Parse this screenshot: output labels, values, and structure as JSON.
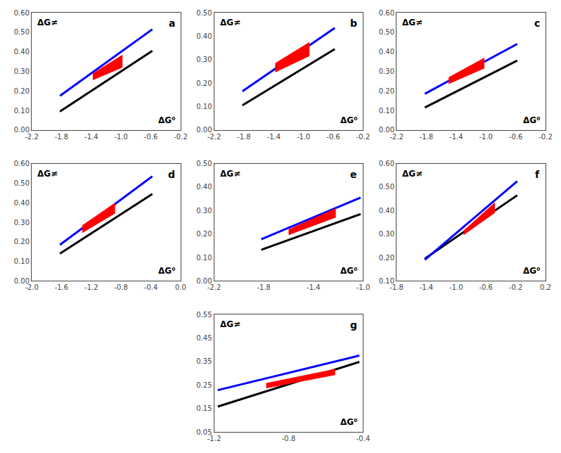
{
  "chart_data": [
    {
      "type": "line",
      "label": "a",
      "annotations": [
        "ΔG≠",
        "ΔG⁰"
      ],
      "grid": false,
      "xlim": [
        -2.2,
        -0.2
      ],
      "xticks": [
        -2.2,
        -1.8,
        -1.4,
        {
          "value": -1.0,
          "label": "-1.0"
        },
        -0.6,
        -0.2
      ],
      "ylim": [
        0.0,
        0.6
      ],
      "yticks": [
        {
          "value": 0.0,
          "label": "0.00"
        },
        {
          "value": 0.1,
          "label": "0.10"
        },
        {
          "value": 0.2,
          "label": "0.20"
        },
        {
          "value": 0.3,
          "label": "0.30"
        },
        {
          "value": 0.4,
          "label": "0.40"
        },
        {
          "value": 0.5,
          "label": "0.50"
        },
        {
          "value": 0.6,
          "label": "0.60"
        }
      ],
      "series": [
        {
          "type": "line",
          "color": "#000000",
          "x": [
            -1.82,
            -0.58
          ],
          "values": [
            0.095,
            0.405
          ]
        },
        {
          "type": "line",
          "color": "#0000FF",
          "x": [
            -1.82,
            -0.58
          ],
          "values": [
            0.175,
            0.515
          ]
        },
        {
          "type": "band",
          "color": "#FF0000",
          "x": [
            -1.38,
            -0.98
          ],
          "values": [
            0.29,
            0.385
          ],
          "low": [
            0.255,
            0.32
          ]
        }
      ]
    },
    {
      "type": "line",
      "label": "b",
      "annotations": [
        "ΔG≠",
        "ΔG⁰"
      ],
      "grid": false,
      "xlim": [
        -2.2,
        -0.2
      ],
      "xticks": [
        -2.2,
        -1.8,
        -1.4,
        {
          "value": -1.0,
          "label": "-1.0"
        },
        -0.6,
        -0.2
      ],
      "ylim": [
        0.0,
        0.5
      ],
      "yticks": [
        {
          "value": 0.0,
          "label": "0.00"
        },
        {
          "value": 0.1,
          "label": "0.10"
        },
        {
          "value": 0.2,
          "label": "0.20"
        },
        {
          "value": 0.3,
          "label": "0.30"
        },
        {
          "value": 0.4,
          "label": "0.40"
        },
        {
          "value": 0.5,
          "label": "0.50"
        }
      ],
      "series": [
        {
          "type": "line",
          "color": "#000000",
          "x": [
            -1.82,
            -0.58
          ],
          "values": [
            0.105,
            0.345
          ]
        },
        {
          "type": "line",
          "color": "#0000FF",
          "x": [
            -1.82,
            -0.58
          ],
          "values": [
            0.165,
            0.435
          ]
        },
        {
          "type": "band",
          "color": "#FF0000",
          "x": [
            -1.38,
            -0.92
          ],
          "values": [
            0.285,
            0.375
          ],
          "low": [
            0.245,
            0.315
          ]
        }
      ]
    },
    {
      "type": "line",
      "label": "c",
      "annotations": [
        "ΔG≠",
        "ΔG⁰"
      ],
      "grid": false,
      "xlim": [
        -2.2,
        -0.2
      ],
      "xticks": [
        -2.2,
        -1.8,
        -1.4,
        {
          "value": -1.0,
          "label": "-1.0"
        },
        -0.6,
        -0.2
      ],
      "ylim": [
        0.0,
        0.6
      ],
      "yticks": [
        {
          "value": 0.0,
          "label": "0.00"
        },
        {
          "value": 0.1,
          "label": "0.10"
        },
        {
          "value": 0.2,
          "label": "0.20"
        },
        {
          "value": 0.3,
          "label": "0.30"
        },
        {
          "value": 0.4,
          "label": "0.40"
        },
        {
          "value": 0.5,
          "label": "0.50"
        },
        {
          "value": 0.6,
          "label": "0.60"
        }
      ],
      "series": [
        {
          "type": "line",
          "color": "#000000",
          "x": [
            -1.82,
            -0.58
          ],
          "values": [
            0.115,
            0.355
          ]
        },
        {
          "type": "line",
          "color": "#0000FF",
          "x": [
            -1.82,
            -0.58
          ],
          "values": [
            0.185,
            0.44
          ]
        },
        {
          "type": "band",
          "color": "#FF0000",
          "x": [
            -1.5,
            -1.02
          ],
          "values": [
            0.27,
            0.37
          ],
          "low": [
            0.235,
            0.315
          ]
        }
      ]
    },
    {
      "type": "line",
      "label": "d",
      "annotations": [
        "ΔG≠",
        "ΔG⁰"
      ],
      "grid": false,
      "xlim": [
        -2.0,
        0.0
      ],
      "xticks": [
        {
          "value": -2.0,
          "label": "-2.0"
        },
        -1.6,
        -1.2,
        -0.8,
        -0.4,
        {
          "value": 0.0,
          "label": "0.0"
        }
      ],
      "ylim": [
        0.0,
        0.6
      ],
      "yticks": [
        {
          "value": 0.0,
          "label": "0.00"
        },
        {
          "value": 0.1,
          "label": "0.10"
        },
        {
          "value": 0.2,
          "label": "0.20"
        },
        {
          "value": 0.3,
          "label": "0.30"
        },
        {
          "value": 0.4,
          "label": "0.40"
        },
        {
          "value": 0.5,
          "label": "0.50"
        },
        {
          "value": 0.6,
          "label": "0.60"
        }
      ],
      "series": [
        {
          "type": "line",
          "color": "#000000",
          "x": [
            -1.62,
            -0.38
          ],
          "values": [
            0.14,
            0.445
          ]
        },
        {
          "type": "line",
          "color": "#0000FF",
          "x": [
            -1.62,
            -0.38
          ],
          "values": [
            0.185,
            0.535
          ]
        },
        {
          "type": "band",
          "color": "#FF0000",
          "x": [
            -1.32,
            -0.88
          ],
          "values": [
            0.285,
            0.4
          ],
          "low": [
            0.245,
            0.345
          ]
        }
      ]
    },
    {
      "type": "line",
      "label": "e",
      "annotations": [
        "ΔG≠",
        "ΔG⁰"
      ],
      "grid": false,
      "xlim": [
        -2.2,
        -1.0
      ],
      "xticks": [
        -2.2,
        -1.8,
        -1.4,
        {
          "value": -1.0,
          "label": "-1.0"
        }
      ],
      "ylim": [
        0.0,
        0.5
      ],
      "yticks": [
        {
          "value": 0.0,
          "label": "0.00"
        },
        {
          "value": 0.1,
          "label": "0.10"
        },
        {
          "value": 0.2,
          "label": "0.20"
        },
        {
          "value": 0.3,
          "label": "0.30"
        },
        {
          "value": 0.4,
          "label": "0.40"
        },
        {
          "value": 0.5,
          "label": "0.50"
        }
      ],
      "series": [
        {
          "type": "line",
          "color": "#000000",
          "x": [
            -1.82,
            -1.02
          ],
          "values": [
            0.133,
            0.285
          ]
        },
        {
          "type": "line",
          "color": "#0000FF",
          "x": [
            -1.82,
            -1.02
          ],
          "values": [
            0.178,
            0.355
          ]
        },
        {
          "type": "band",
          "color": "#FF0000",
          "x": [
            -1.6,
            -1.22
          ],
          "values": [
            0.22,
            0.31
          ],
          "low": [
            0.195,
            0.27
          ]
        }
      ]
    },
    {
      "type": "line",
      "label": "f",
      "annotations": [
        "ΔG≠",
        "ΔG⁰"
      ],
      "grid": false,
      "xlim": [
        -1.8,
        0.2
      ],
      "xticks": [
        -1.8,
        -1.4,
        {
          "value": -1.0,
          "label": "-1.0"
        },
        -0.6,
        -0.2,
        0.2
      ],
      "ylim": [
        0.1,
        0.6
      ],
      "yticks": [
        {
          "value": 0.1,
          "label": "0.10"
        },
        {
          "value": 0.2,
          "label": "0.20"
        },
        {
          "value": 0.3,
          "label": "0.30"
        },
        {
          "value": 0.4,
          "label": "0.40"
        },
        {
          "value": 0.5,
          "label": "0.50"
        },
        {
          "value": 0.6,
          "label": "0.60"
        }
      ],
      "series": [
        {
          "type": "line",
          "color": "#000000",
          "x": [
            -1.42,
            -0.18
          ],
          "values": [
            0.195,
            0.465
          ]
        },
        {
          "type": "line",
          "color": "#0000FF",
          "x": [
            -1.42,
            -0.18
          ],
          "values": [
            0.19,
            0.525
          ]
        },
        {
          "type": "band",
          "color": "#FF0000",
          "x": [
            -0.9,
            -0.48
          ],
          "values": [
            0.315,
            0.435
          ],
          "low": [
            0.295,
            0.39
          ]
        }
      ]
    },
    {
      "type": "line",
      "label": "g",
      "annotations": [
        "ΔG≠",
        "ΔG⁰"
      ],
      "grid": false,
      "xlim": [
        -1.2,
        -0.4
      ],
      "xticks": [
        -1.2,
        -0.8,
        -0.4
      ],
      "ylim": [
        0.05,
        0.55
      ],
      "yticks": [
        0.05,
        0.15,
        0.25,
        0.35,
        0.45,
        0.55
      ],
      "series": [
        {
          "type": "line",
          "color": "#000000",
          "x": [
            -1.18,
            -0.42
          ],
          "values": [
            0.158,
            0.348
          ]
        },
        {
          "type": "line",
          "color": "#0000FF",
          "x": [
            -1.18,
            -0.42
          ],
          "values": [
            0.228,
            0.375
          ]
        },
        {
          "type": "band",
          "color": "#FF0000",
          "x": [
            -0.92,
            -0.55
          ],
          "values": [
            0.258,
            0.318
          ],
          "low": [
            0.236,
            0.292
          ]
        }
      ]
    }
  ]
}
